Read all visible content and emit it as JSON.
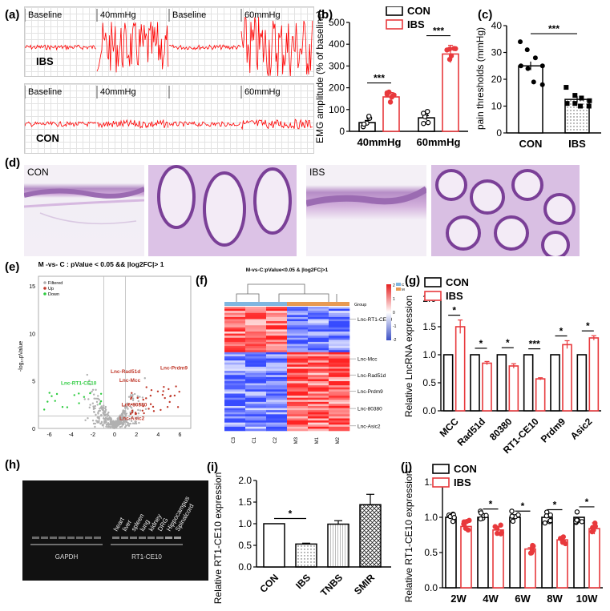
{
  "labels": {
    "a": "(a)",
    "b": "(b)",
    "c": "(c)",
    "d": "(d)",
    "e": "(e)",
    "f": "(f)",
    "g": "(g)",
    "h": "(h)",
    "i": "(i)",
    "j": "(j)"
  },
  "colors": {
    "con": "#000000",
    "ibs": "#e8393c",
    "trace": "#ff0000",
    "filtered": "#b0b0b0",
    "up": "#c0392b",
    "down": "#2ecc40"
  },
  "panel_a": {
    "tracks": [
      {
        "name": "IBS",
        "segments": [
          "Baseline",
          "40mmHg",
          "Baseline",
          "60mmHg"
        ],
        "amplitude": [
          3,
          32,
          3,
          40
        ]
      },
      {
        "name": "CON",
        "segments": [
          "Baseline",
          "40mmHg",
          "",
          "60mmHg"
        ],
        "amplitude": [
          3,
          5,
          3,
          6
        ]
      }
    ]
  },
  "panel_d": {
    "left_label": "CON",
    "right_label": "IBS"
  },
  "panel_e": {
    "title": "M -vs- C : pValue < 0.05 && |log2FC|> 1",
    "ylabel": "-log₁₀pValue",
    "legend": [
      "Filtered",
      "Up",
      "Down"
    ],
    "labels_up": [
      "Lnc-Rad51d",
      "Lnc-Mcc",
      "Lnc-Prdm9",
      "Lnc-80380",
      "Lnc-Asic2"
    ],
    "labels_down": [
      "Lnc-RT1-CE10"
    ],
    "xticks": [
      "-6",
      "-4",
      "-2",
      "0",
      "2",
      "4",
      "6"
    ],
    "yticks": [
      "0",
      "5",
      "10",
      "15"
    ]
  },
  "panel_f": {
    "title": "M-vs-C:pValue<0.05 & |log2FC|>1",
    "group_label": "Group",
    "legend_group": [
      "C",
      "M"
    ],
    "scale": [
      "2",
      "1",
      "0",
      "-1",
      "-2"
    ],
    "row_labels": [
      "Lnc-RT1-CE10",
      "Lnc-Mcc",
      "Lnc-Rad51d",
      "Lnc-Prdm9",
      "Lnc-80380",
      "Lnc-Asic2"
    ],
    "col_labels": [
      "C3",
      "C1",
      "C2",
      "M3",
      "M1",
      "M2"
    ]
  },
  "panel_h": {
    "lane_labels": [
      "heart",
      "liver",
      "spleen",
      "lung",
      "kidney",
      "DRG",
      "Hippocampus",
      "Spinalcord"
    ],
    "group_labels": [
      "GAPDH",
      "RT1-CE10"
    ]
  },
  "chart_data": [
    {
      "panel": "b",
      "type": "bar",
      "categories": [
        "40mmHg",
        "60mmHg"
      ],
      "series": [
        {
          "name": "CON",
          "values": [
            40,
            62
          ]
        },
        {
          "name": "IBS",
          "values": [
            158,
            355
          ]
        }
      ],
      "errors": [
        [
          10,
          10
        ],
        [
          20,
          40
        ]
      ],
      "ylabel": "EMG amplitude (% of baseline)",
      "ylim": [
        0,
        500
      ],
      "yticks": [
        "0",
        "100",
        "200",
        "300",
        "400",
        "500"
      ],
      "significance": [
        "***",
        "***"
      ],
      "legend": "top"
    },
    {
      "panel": "c",
      "type": "bar",
      "categories": [
        "CON",
        "IBS"
      ],
      "values": [
        25,
        12.5
      ],
      "errors": [
        1.6,
        1.2
      ],
      "ylabel": "pain thresholds (mmHg)",
      "ylim": [
        0,
        40
      ],
      "yticks": [
        "0",
        "10",
        "20",
        "30",
        "40"
      ],
      "significance": [
        "***"
      ],
      "points": [
        [
          34,
          31,
          28,
          25,
          25,
          24,
          19,
          18
        ],
        [
          17,
          14,
          13,
          12,
          11,
          11,
          10,
          10
        ]
      ]
    },
    {
      "panel": "g",
      "type": "bar",
      "categories": [
        "MCC",
        "Rad51d",
        "80380",
        "RT1-CE10",
        "Prdm9",
        "Asic2"
      ],
      "series": [
        {
          "name": "CON",
          "values": [
            1,
            1,
            1,
            1,
            1,
            1
          ]
        },
        {
          "name": "IBS",
          "values": [
            1.5,
            0.85,
            0.8,
            0.57,
            1.18,
            1.3
          ]
        }
      ],
      "errors": [
        0.12,
        0.03,
        0.04,
        0.02,
        0.07,
        0.04
      ],
      "significance": [
        "*",
        "*",
        "*",
        "***",
        "*",
        "*"
      ],
      "ylabel": "Relative LncRNA expression",
      "ylim": [
        0,
        2.0
      ],
      "yticks": [
        "0.0",
        "0.5",
        "1.0",
        "1.5",
        "2.0"
      ],
      "legend": "top-left"
    },
    {
      "panel": "i",
      "type": "bar",
      "categories": [
        "CON",
        "IBS",
        "TNBS",
        "SMIR"
      ],
      "values": [
        1.0,
        0.53,
        0.99,
        1.44
      ],
      "errors": [
        0,
        0.02,
        0.08,
        0.24
      ],
      "significance": [
        "*"
      ],
      "ylabel": "Relative RT1-CE10 expression",
      "ylim": [
        0,
        2.0
      ],
      "yticks": [
        "0.0",
        "0.5",
        "1.0",
        "1.5",
        "2.0"
      ]
    },
    {
      "panel": "j",
      "type": "bar",
      "categories": [
        "2W",
        "4W",
        "6W",
        "8W",
        "10W"
      ],
      "series": [
        {
          "name": "CON",
          "values": [
            1,
            1,
            1,
            1,
            1
          ]
        },
        {
          "name": "IBS",
          "values": [
            0.87,
            0.82,
            0.55,
            0.68,
            0.84
          ]
        }
      ],
      "errors": [
        0.07,
        0.05,
        0.02,
        0.04,
        0.08
      ],
      "significance": [
        "",
        "*",
        "*",
        "*",
        "*"
      ],
      "ylabel": "Relative RT1-CE10 expression",
      "ylim": [
        0,
        1.5
      ],
      "yticks": [
        "0.0",
        "0.5",
        "1.0",
        "1.5"
      ],
      "legend": "top-left"
    }
  ]
}
